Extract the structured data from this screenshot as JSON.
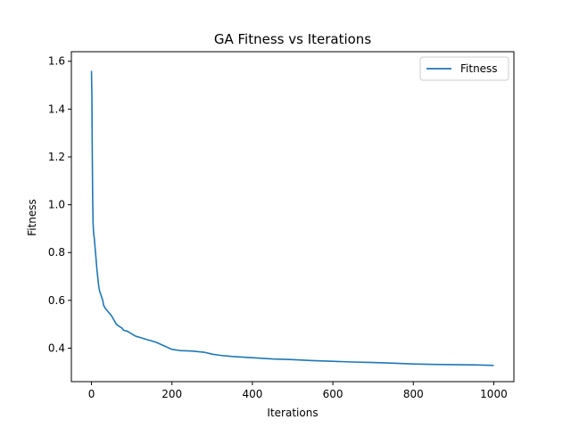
{
  "chart_data": {
    "type": "line",
    "title": "GA Fitness vs Iterations",
    "xlabel": "Iterations",
    "ylabel": "Fitness",
    "xlim": [
      -50,
      1050
    ],
    "ylim": [
      0.26,
      1.64
    ],
    "xticks": [
      0,
      200,
      400,
      600,
      800,
      1000
    ],
    "yticks": [
      0.4,
      0.6,
      0.8,
      1.0,
      1.2,
      1.4,
      1.6
    ],
    "xtick_labels": [
      "0",
      "200",
      "400",
      "600",
      "800",
      "1000"
    ],
    "ytick_labels": [
      "0.4",
      "0.6",
      "0.8",
      "1.0",
      "1.2",
      "1.4",
      "1.6"
    ],
    "grid": false,
    "legend": {
      "position": "top-right"
    },
    "series": [
      {
        "name": "Fitness",
        "color": "#1f77b4",
        "x": [
          0,
          1,
          2,
          3,
          4,
          5,
          6,
          7,
          8,
          10,
          12,
          14,
          16,
          18,
          20,
          22,
          25,
          28,
          30,
          35,
          40,
          45,
          50,
          55,
          60,
          65,
          70,
          75,
          80,
          90,
          100,
          110,
          120,
          140,
          160,
          180,
          200,
          220,
          250,
          280,
          300,
          320,
          350,
          400,
          450,
          500,
          550,
          600,
          650,
          700,
          750,
          800,
          850,
          900,
          950,
          1000
        ],
        "y": [
          1.56,
          1.45,
          1.2,
          1.02,
          0.92,
          0.89,
          0.87,
          0.86,
          0.84,
          0.8,
          0.76,
          0.72,
          0.69,
          0.66,
          0.64,
          0.63,
          0.615,
          0.6,
          0.58,
          0.565,
          0.555,
          0.545,
          0.535,
          0.52,
          0.505,
          0.495,
          0.49,
          0.485,
          0.475,
          0.47,
          0.46,
          0.45,
          0.445,
          0.435,
          0.425,
          0.41,
          0.395,
          0.39,
          0.388,
          0.383,
          0.375,
          0.37,
          0.365,
          0.36,
          0.355,
          0.352,
          0.348,
          0.345,
          0.342,
          0.34,
          0.337,
          0.334,
          0.332,
          0.331,
          0.33,
          0.328
        ]
      }
    ]
  }
}
